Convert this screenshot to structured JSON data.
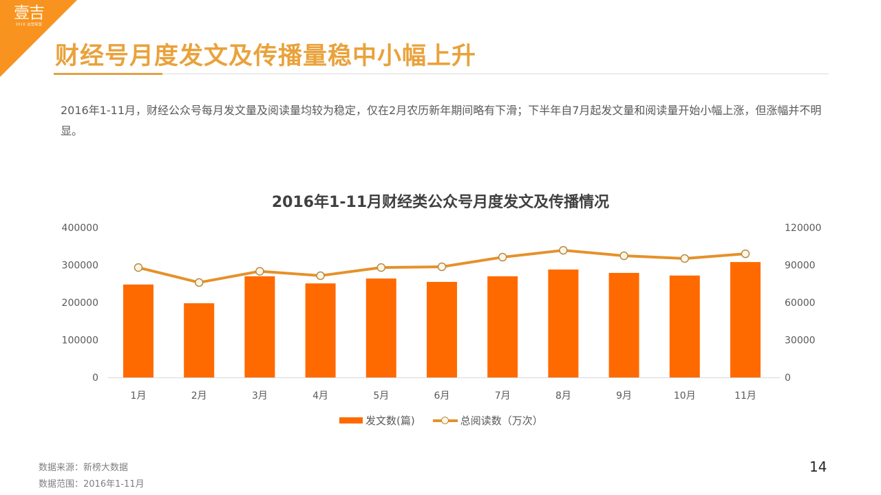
{
  "logo": {
    "mark": "壹吉",
    "subtitle": "2016 运营联盟"
  },
  "header": {
    "title": "财经号月度发文及传播量稳中小幅上升",
    "accent_color": "#E9A23B",
    "corner_color": "#F7931E"
  },
  "summary": "2016年1-11月，财经公众号每月发文量及阅读量均较为稳定，仅在2月农历新年期间略有下滑；下半年自7月起发文量和阅读量开始小幅上涨，但涨幅并不明显。",
  "chart_data": {
    "type": "bar+line",
    "title": "2016年1-11月财经类公众号月度发文及传播情况",
    "categories": [
      "1月",
      "2月",
      "3月",
      "4月",
      "5月",
      "6月",
      "7月",
      "8月",
      "9月",
      "10月",
      "11月"
    ],
    "series": [
      {
        "name": "发文数(篇)",
        "type": "bar",
        "axis": "left",
        "color": "#FF6A00",
        "values": [
          248000,
          198000,
          270000,
          251000,
          264000,
          255000,
          270000,
          288000,
          279000,
          272000,
          308000
        ]
      },
      {
        "name": "总阅读数（万次）",
        "type": "line",
        "axis": "right",
        "color": "#E5912A",
        "values": [
          88000,
          76000,
          85000,
          81500,
          88000,
          88600,
          96300,
          101800,
          97400,
          95200,
          99000
        ]
      }
    ],
    "y_left": {
      "ticks": [
        0,
        100000,
        200000,
        300000,
        400000
      ],
      "ylim": [
        0,
        400000
      ]
    },
    "y_right": {
      "ticks": [
        0,
        30000,
        60000,
        90000,
        120000
      ],
      "ylim": [
        0,
        120000
      ]
    },
    "xlabel": "",
    "ylabel": "",
    "grid": false,
    "legend_position": "bottom"
  },
  "legend": {
    "bar_label": "发文数(篇)",
    "line_label": "总阅读数（万次）"
  },
  "footer": {
    "source": "数据来源：新榜大数据",
    "range": "数据范围：2016年1-11月"
  },
  "page_number": "14"
}
